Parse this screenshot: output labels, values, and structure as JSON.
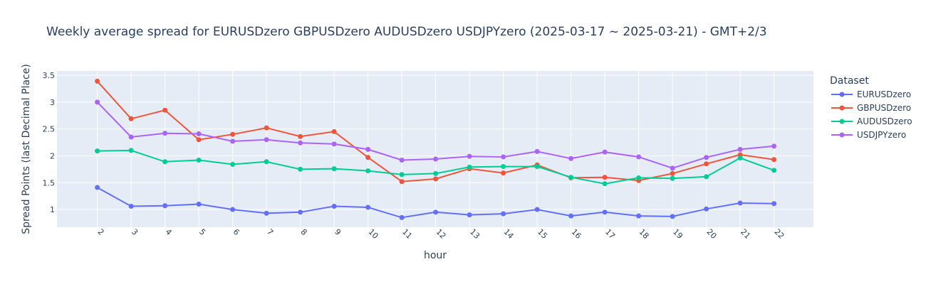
{
  "chart_data": {
    "type": "line",
    "title": "Weekly average spread for  EURUSDzero GBPUSDzero AUDUSDzero USDJPYzero (2025-03-17 ~ 2025-03-21) - GMT+2/3",
    "xlabel": "hour",
    "ylabel": "Spread Points (last Decimal Place)",
    "x": [
      2,
      3,
      4,
      5,
      6,
      7,
      8,
      9,
      10,
      11,
      12,
      13,
      14,
      15,
      16,
      17,
      18,
      19,
      20,
      21,
      22
    ],
    "x_tick_labels": [
      "2",
      "3",
      "4",
      "5",
      "6",
      "7",
      "8",
      "9",
      "10",
      "11",
      "12",
      "13",
      "14",
      "15",
      "16",
      "17",
      "18",
      "19",
      "20",
      "21",
      "22"
    ],
    "y_ticks": [
      1,
      1.5,
      2,
      2.5,
      3,
      3.5
    ],
    "y_tick_labels": [
      "1",
      "1.5",
      "2",
      "2.5",
      "3",
      "3.5"
    ],
    "ylim": [
      0.67,
      3.58
    ],
    "grid": true,
    "legend_title": "Dataset",
    "legend_position": "right",
    "series": [
      {
        "name": "EURUSDzero",
        "color": "#636efa",
        "values": [
          1.41,
          1.06,
          1.07,
          1.1,
          1.0,
          0.93,
          0.95,
          1.06,
          1.04,
          0.85,
          0.95,
          0.9,
          0.92,
          1.0,
          0.88,
          0.95,
          0.88,
          0.87,
          1.01,
          1.12,
          1.11
        ]
      },
      {
        "name": "GBPUSDzero",
        "color": "#ef553b",
        "values": [
          3.39,
          2.69,
          2.85,
          2.3,
          2.4,
          2.52,
          2.36,
          2.45,
          1.97,
          1.52,
          1.57,
          1.76,
          1.68,
          1.83,
          1.59,
          1.6,
          1.54,
          1.67,
          1.85,
          2.02,
          1.93
        ]
      },
      {
        "name": "AUDUSDzero",
        "color": "#00cc96",
        "values": [
          2.09,
          2.1,
          1.89,
          1.92,
          1.84,
          1.89,
          1.75,
          1.76,
          1.72,
          1.65,
          1.67,
          1.79,
          1.8,
          1.8,
          1.6,
          1.48,
          1.59,
          1.58,
          1.61,
          1.96,
          1.73
        ]
      },
      {
        "name": "USDJPYzero",
        "color": "#ab63fa",
        "values": [
          3.0,
          2.35,
          2.42,
          2.41,
          2.27,
          2.3,
          2.24,
          2.22,
          2.12,
          1.92,
          1.94,
          1.99,
          1.98,
          2.08,
          1.95,
          2.07,
          1.98,
          1.77,
          1.97,
          2.12,
          2.18
        ]
      }
    ]
  }
}
